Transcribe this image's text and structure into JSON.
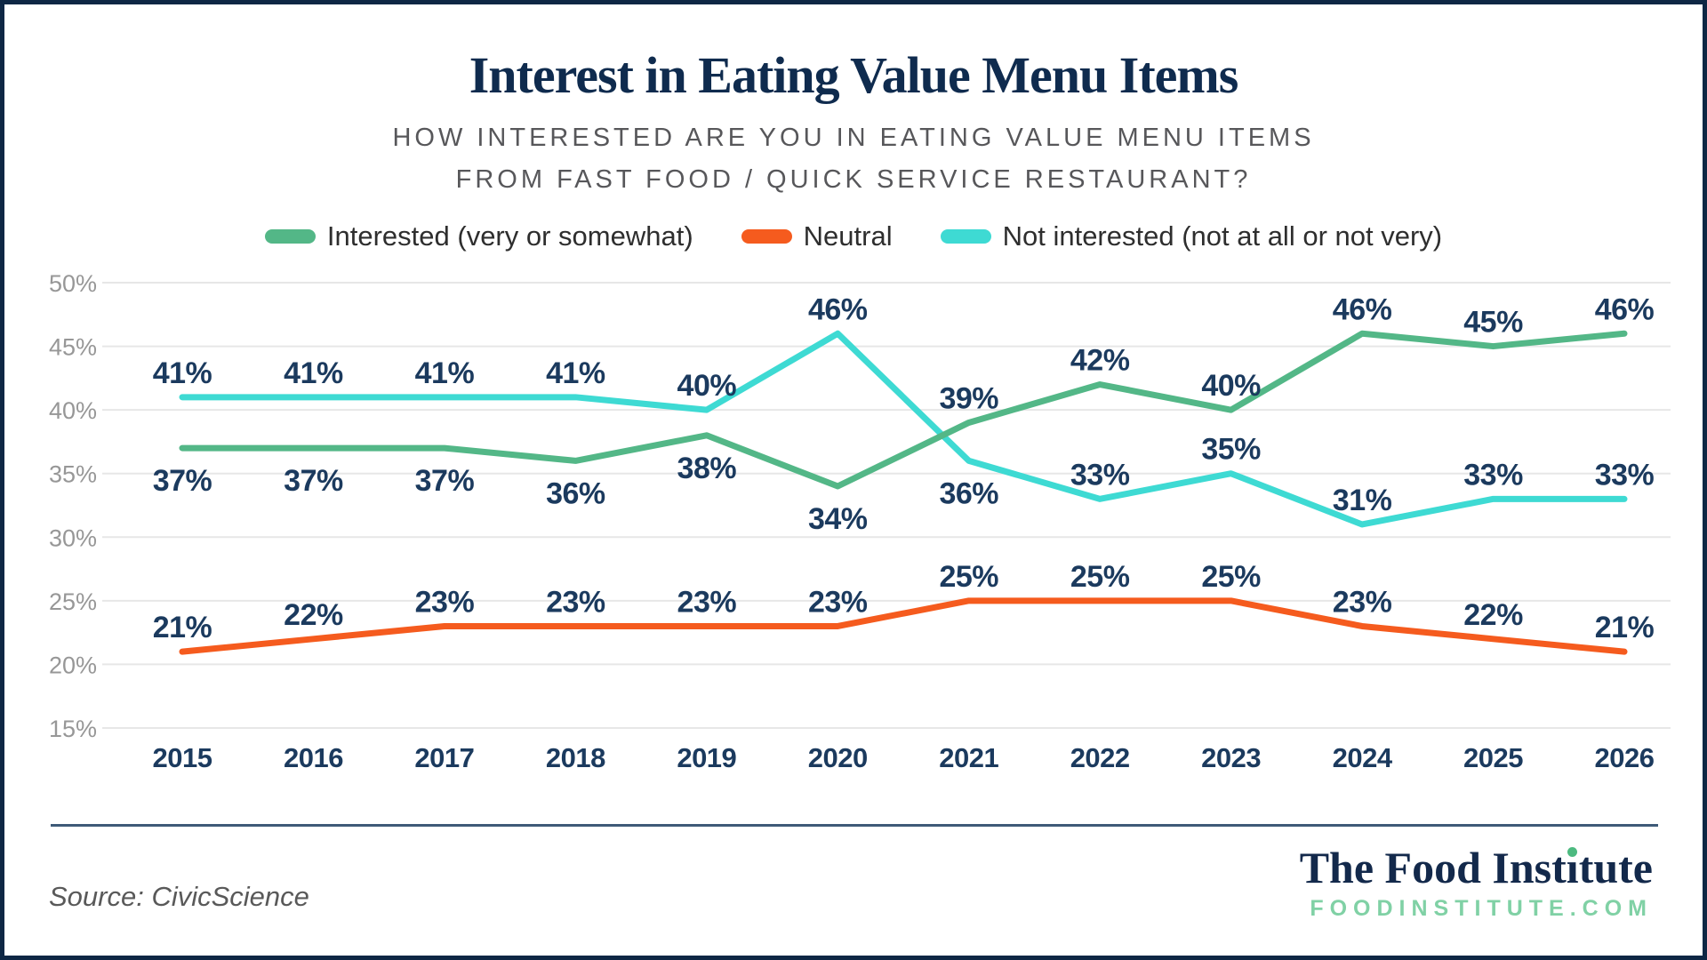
{
  "chart_data": {
    "type": "line",
    "title": "Interest in Eating Value Menu Items",
    "subtitle_line1": "HOW INTERESTED ARE YOU IN EATING VALUE MENU ITEMS",
    "subtitle_line2": "FROM FAST FOOD / QUICK SERVICE RESTAURANT?",
    "x": [
      "2015",
      "2016",
      "2017",
      "2018",
      "2019",
      "2020",
      "2021",
      "2022",
      "2023",
      "2024",
      "2025",
      "2026"
    ],
    "series": [
      {
        "name": "Interested (very or somewhat)",
        "color": "#53B787",
        "values": [
          37,
          37,
          37,
          36,
          38,
          34,
          39,
          42,
          40,
          46,
          45,
          46
        ],
        "label_pos": [
          "below",
          "below",
          "below",
          "below",
          "below",
          "below",
          "above",
          "above",
          "above",
          "above",
          "above",
          "above"
        ]
      },
      {
        "name": "Neutral",
        "color": "#F55B1E",
        "values": [
          21,
          22,
          23,
          23,
          23,
          23,
          25,
          25,
          25,
          23,
          22,
          21
        ],
        "label_pos": [
          "above",
          "above",
          "above",
          "above",
          "above",
          "above",
          "above",
          "above",
          "above",
          "above",
          "above",
          "above"
        ]
      },
      {
        "name": "Not interested (not at all or not very)",
        "color": "#3EDAD3",
        "values": [
          41,
          41,
          41,
          41,
          40,
          46,
          36,
          33,
          35,
          31,
          33,
          33
        ],
        "label_pos": [
          "above",
          "above",
          "above",
          "above",
          "above",
          "above",
          "below",
          "above",
          "above",
          "above",
          "above",
          "above"
        ]
      }
    ],
    "y_ticks": [
      50,
      45,
      40,
      35,
      30,
      25,
      20,
      15
    ],
    "ylim": [
      15,
      50
    ],
    "value_suffix": "%",
    "grid": true,
    "legend_position": "top",
    "xlabel": "",
    "ylabel": ""
  },
  "footer": {
    "source": "Source: CivicScience",
    "logo_name": "The Food Institute",
    "logo_url_text": "FOODINSTITUTE.COM"
  },
  "colors": {
    "border_navy": "#0E2744",
    "title_navy": "#0F2B4E",
    "label_navy": "#1B3A5E",
    "logo_navy": "#13294B",
    "logo_mint": "#80D1A5",
    "logo_dot_green": "#4DBA80",
    "series_green": "#53B787",
    "series_orange": "#F55B1E",
    "series_cyan": "#3EDAD3"
  }
}
